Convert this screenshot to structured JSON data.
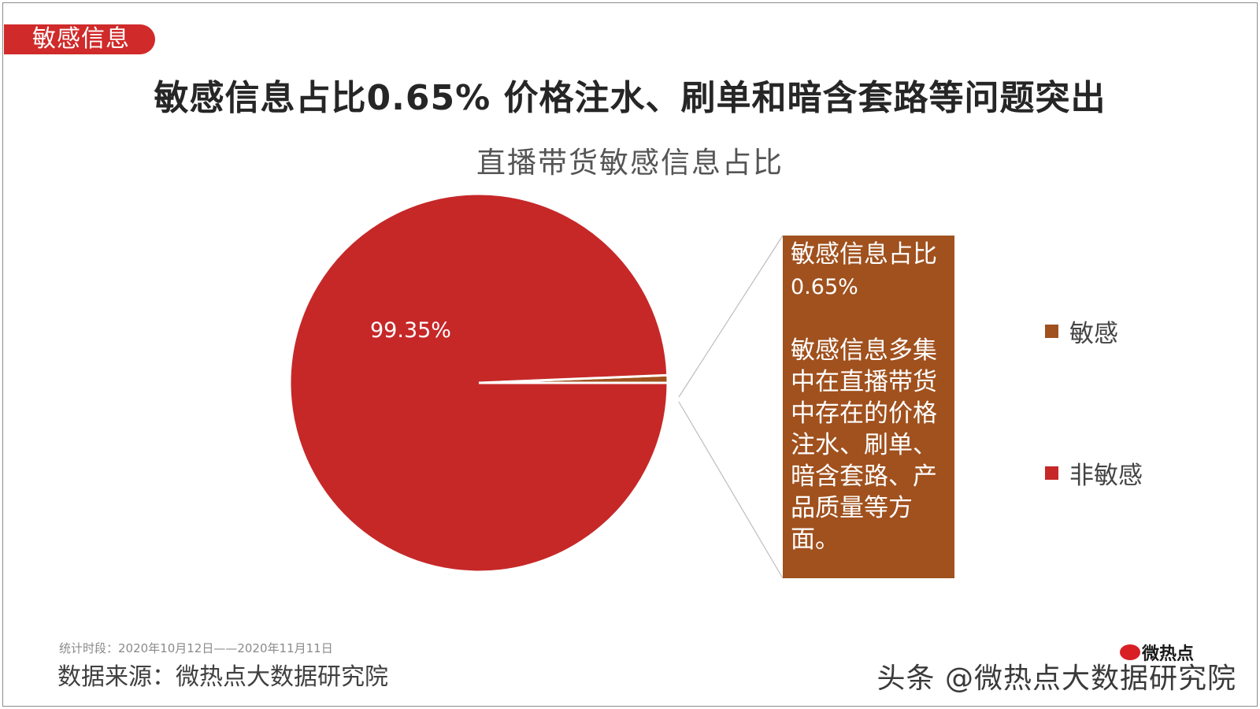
{
  "tag": "敏感信息",
  "headline": "敏感信息占比0.65%  价格注水、刷单和暗含套路等问题突出",
  "callout": {
    "line1": "敏感信息占比",
    "line2": "0.65%",
    "body": "敏感信息多集中在直播带货中存在的价格注水、刷单、暗含套路、产品质量等方面。"
  },
  "footer": {
    "period": "统计时段：2020年10月12日——2020年11月11日",
    "source": "数据来源：微热点大数据研究院"
  },
  "watermark": {
    "text": "头条 @微热点大数据研究院",
    "logo_text": "微热点"
  },
  "colors": {
    "sensitive": "#a0511e",
    "non_sensitive": "#c62828",
    "tag_bg": "#d02a2a"
  },
  "chart_data": {
    "type": "pie",
    "title": "直播带货敏感信息占比",
    "series": [
      {
        "name": "敏感",
        "value": 0.65,
        "color": "#a0511e"
      },
      {
        "name": "非敏感",
        "value": 99.35,
        "color": "#c62828"
      }
    ],
    "data_labels": [
      "99.35%"
    ],
    "legend": [
      "敏感",
      "非敏感"
    ],
    "legend_position": "right"
  }
}
